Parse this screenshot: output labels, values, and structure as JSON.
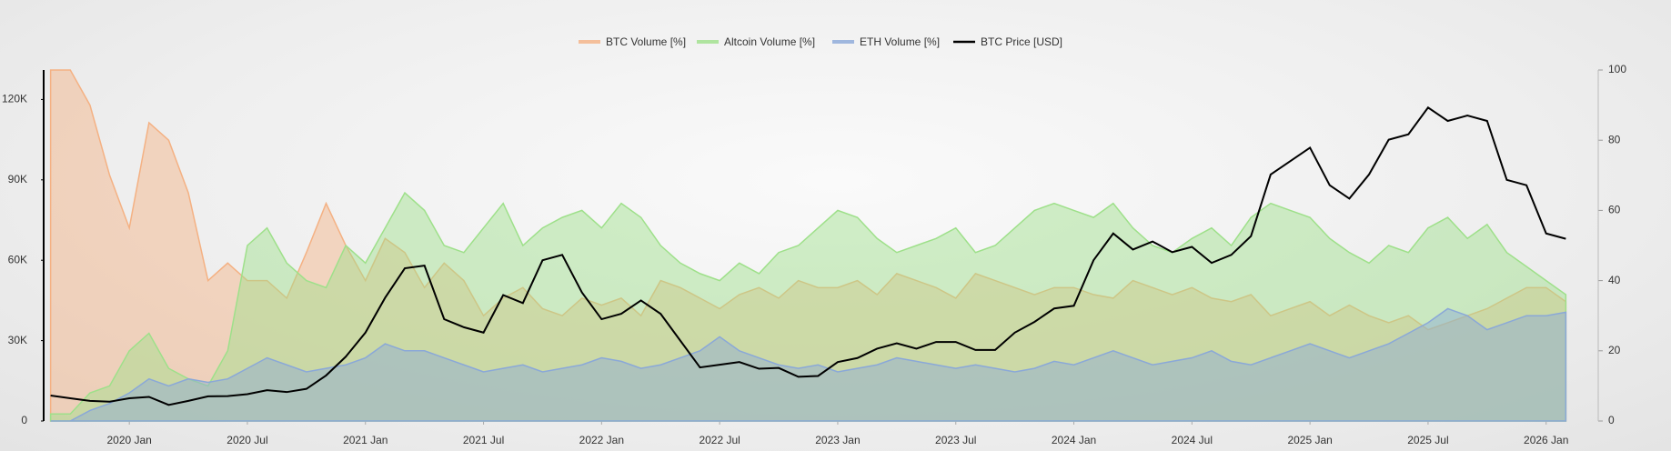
{
  "chart_data": {
    "type": "area",
    "x": [
      "2019-09",
      "2019-10",
      "2019-11",
      "2019-12",
      "2020-01",
      "2020-02",
      "2020-03",
      "2020-04",
      "2020-05",
      "2020-06",
      "2020-07",
      "2020-08",
      "2020-09",
      "2020-10",
      "2020-11",
      "2020-12",
      "2021-01",
      "2021-02",
      "2021-03",
      "2021-04",
      "2021-05",
      "2021-06",
      "2021-07",
      "2021-08",
      "2021-09",
      "2021-10",
      "2021-11",
      "2021-12",
      "2022-01",
      "2022-02",
      "2022-03",
      "2022-04",
      "2022-05",
      "2022-06",
      "2022-07",
      "2022-08",
      "2022-09",
      "2022-10",
      "2022-11",
      "2022-12",
      "2023-01",
      "2023-02",
      "2023-03",
      "2023-04",
      "2023-05",
      "2023-06",
      "2023-07",
      "2023-08",
      "2023-09",
      "2023-10",
      "2023-11",
      "2023-12",
      "2024-01",
      "2024-02",
      "2024-03",
      "2024-04",
      "2024-05",
      "2024-06",
      "2024-07",
      "2024-08",
      "2024-09",
      "2024-10",
      "2024-11",
      "2024-12",
      "2025-01",
      "2025-02",
      "2025-03",
      "2025-04",
      "2025-05",
      "2025-06",
      "2025-07",
      "2025-08",
      "2025-09",
      "2025-10",
      "2025-11",
      "2025-12",
      "2026-01",
      "2026-02"
    ],
    "xlim": [
      "2019-08",
      "2026-03"
    ],
    "xticks": [
      {
        "value": "2020-01",
        "label": "2020 Jan"
      },
      {
        "value": "2020-07",
        "label": "2020 Jul"
      },
      {
        "value": "2021-01",
        "label": "2021 Jan"
      },
      {
        "value": "2021-07",
        "label": "2021 Jul"
      },
      {
        "value": "2022-01",
        "label": "2022 Jan"
      },
      {
        "value": "2022-07",
        "label": "2022 Jul"
      },
      {
        "value": "2023-01",
        "label": "2023 Jan"
      },
      {
        "value": "2023-07",
        "label": "2023 Jul"
      },
      {
        "value": "2024-01",
        "label": "2024 Jan"
      },
      {
        "value": "2024-07",
        "label": "2024 Jul"
      },
      {
        "value": "2025-01",
        "label": "2025 Jan"
      },
      {
        "value": "2025-07",
        "label": "2025 Jul"
      },
      {
        "value": "2026-01",
        "label": "2026 Jan"
      }
    ],
    "ylim": [
      0,
      131000
    ],
    "yticks": [
      0,
      {
        "value": 30000,
        "label": "30K"
      },
      {
        "value": 60000,
        "label": "60K"
      },
      {
        "value": 90000,
        "label": "90K"
      },
      {
        "value": 120000,
        "label": "120K"
      }
    ],
    "y2lim": [
      0,
      100
    ],
    "y2ticks": [
      0,
      20,
      40,
      60,
      80,
      100
    ],
    "series": [
      {
        "name": "BTC Volume [%]",
        "type": "area",
        "axis": "y2",
        "color": "#f4b183",
        "values": [
          100,
          100,
          90,
          70,
          55,
          85,
          80,
          65,
          40,
          45,
          40,
          40,
          35,
          48,
          62,
          50,
          40,
          52,
          48,
          38,
          45,
          40,
          30,
          35,
          38,
          32,
          30,
          35,
          33,
          35,
          30,
          40,
          38,
          35,
          32,
          36,
          38,
          35,
          40,
          38,
          38,
          40,
          36,
          42,
          40,
          38,
          35,
          42,
          40,
          38,
          36,
          38,
          38,
          36,
          35,
          40,
          38,
          36,
          38,
          35,
          34,
          36,
          30,
          32,
          34,
          30,
          33,
          30,
          28,
          30,
          26,
          28,
          30,
          32,
          35,
          38,
          38,
          34
        ]
      },
      {
        "name": "Altcoin Volume [%]",
        "type": "area",
        "axis": "y2",
        "color": "#9ee08a",
        "values": [
          2,
          2,
          8,
          10,
          20,
          25,
          15,
          12,
          10,
          20,
          50,
          55,
          45,
          40,
          38,
          50,
          45,
          55,
          65,
          60,
          50,
          48,
          55,
          62,
          50,
          55,
          58,
          60,
          55,
          62,
          58,
          50,
          45,
          42,
          40,
          45,
          42,
          48,
          50,
          55,
          60,
          58,
          52,
          48,
          50,
          52,
          55,
          48,
          50,
          55,
          60,
          62,
          60,
          58,
          62,
          55,
          50,
          48,
          52,
          55,
          50,
          58,
          62,
          60,
          58,
          52,
          48,
          45,
          50,
          48,
          55,
          58,
          52,
          56,
          48,
          44,
          40,
          36
        ]
      },
      {
        "name": "ETH Volume [%]",
        "type": "area",
        "axis": "y2",
        "color": "#8aa8d8",
        "values": [
          0,
          0,
          3,
          5,
          8,
          12,
          10,
          12,
          11,
          12,
          15,
          18,
          16,
          14,
          15,
          16,
          18,
          22,
          20,
          20,
          18,
          16,
          14,
          15,
          16,
          14,
          15,
          16,
          18,
          17,
          15,
          16,
          18,
          20,
          24,
          20,
          18,
          16,
          15,
          16,
          14,
          15,
          16,
          18,
          17,
          16,
          15,
          16,
          15,
          14,
          15,
          17,
          16,
          18,
          20,
          18,
          16,
          17,
          18,
          20,
          17,
          16,
          18,
          20,
          22,
          20,
          18,
          20,
          22,
          25,
          28,
          32,
          30,
          26,
          28,
          30,
          30,
          31
        ]
      },
      {
        "name": "BTC Price [USD]",
        "type": "line",
        "color": "#000000",
        "values": [
          9500,
          8500,
          7500,
          7200,
          8500,
          9000,
          6000,
          7500,
          9200,
          9300,
          10000,
          11500,
          10800,
          12000,
          17000,
          24000,
          33000,
          46000,
          57000,
          58000,
          38000,
          35000,
          33000,
          47000,
          44000,
          60000,
          62000,
          48000,
          38000,
          40000,
          45000,
          40000,
          30000,
          20000,
          21000,
          22000,
          19500,
          19800,
          16500,
          16800,
          22000,
          23500,
          27000,
          29000,
          27000,
          29500,
          29500,
          26500,
          26500,
          33000,
          37000,
          42000,
          43000,
          60000,
          70000,
          64000,
          67000,
          63000,
          65000,
          59000,
          62000,
          69000,
          92000,
          97000,
          102000,
          88000,
          83000,
          92000,
          105000,
          107000,
          117000,
          112000,
          114000,
          112000,
          90000,
          88000,
          70000,
          68000
        ]
      }
    ]
  }
}
